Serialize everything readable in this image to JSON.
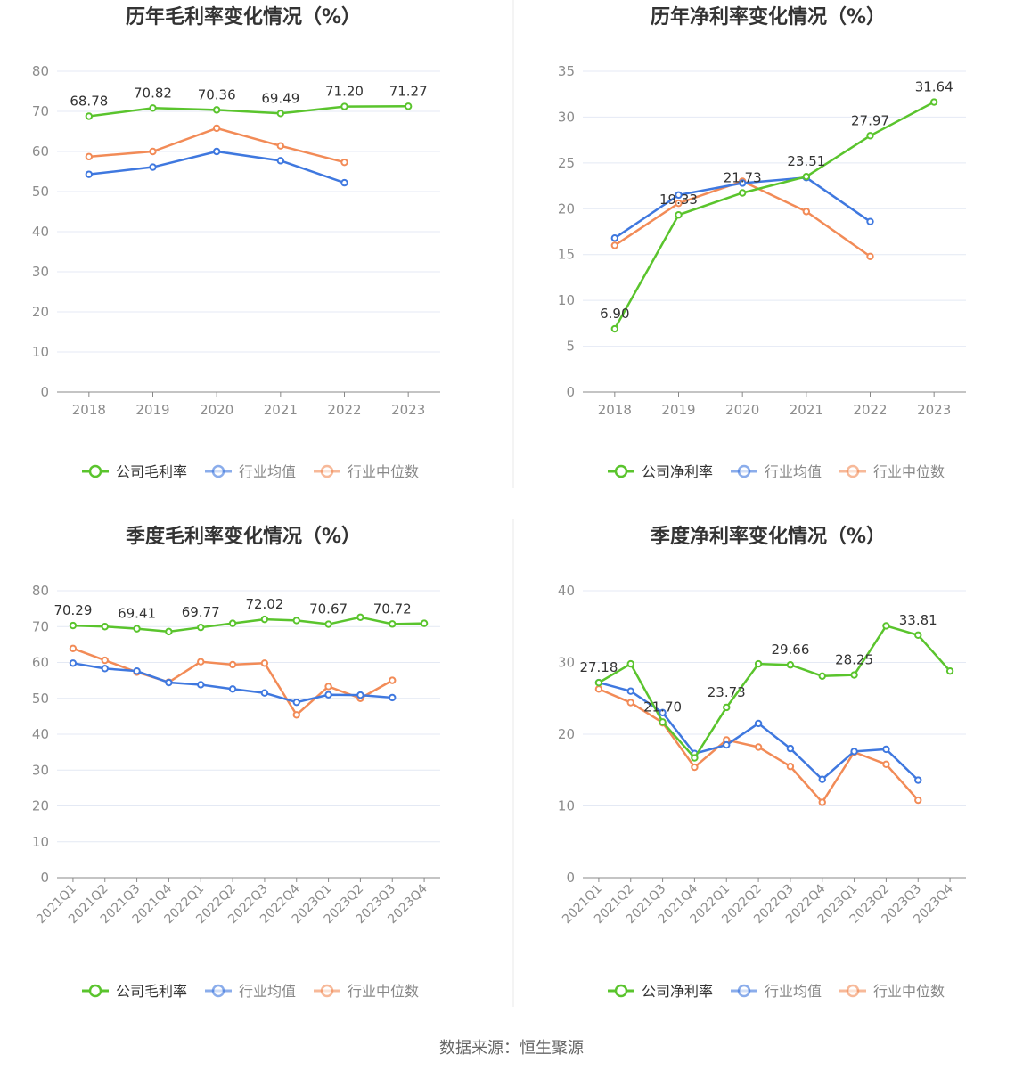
{
  "colors": {
    "company": "#5ac42d",
    "industry_avg": "#3f78df",
    "industry_median": "#f28b57",
    "grid": "#e4e9f4",
    "axis": "#888888",
    "tick_text": "#8c8c8c",
    "title": "#333333",
    "divider": "#e8e8e8"
  },
  "source_text": "数据来源：恒生聚源",
  "chart_data": [
    {
      "type": "line",
      "title": "历年毛利率变化情况（%）",
      "categories": [
        "2018",
        "2019",
        "2020",
        "2021",
        "2022",
        "2023"
      ],
      "ylim": [
        0,
        80
      ],
      "yticks": [
        "0",
        "10",
        "20",
        "30",
        "40",
        "50",
        "60",
        "70",
        "80"
      ],
      "grid": true,
      "legend_position": "bottom",
      "series": [
        {
          "name": "公司毛利率",
          "key": "company",
          "values": [
            68.78,
            70.82,
            70.36,
            69.49,
            71.2,
            71.27
          ],
          "labels": [
            "68.78",
            "70.82",
            "70.36",
            "69.49",
            "71.20",
            "71.27"
          ]
        },
        {
          "name": "行业均值",
          "key": "industry_avg",
          "values": [
            54.3,
            56.1,
            60.0,
            57.7,
            52.2,
            null
          ]
        },
        {
          "name": "行业中位数",
          "key": "industry_median",
          "values": [
            58.7,
            60.0,
            65.8,
            61.4,
            57.3,
            null
          ]
        }
      ]
    },
    {
      "type": "line",
      "title": "历年净利率变化情况（%）",
      "categories": [
        "2018",
        "2019",
        "2020",
        "2021",
        "2022",
        "2023"
      ],
      "ylim": [
        0,
        35
      ],
      "yticks": [
        "0",
        "5",
        "10",
        "15",
        "20",
        "25",
        "30",
        "35"
      ],
      "grid": true,
      "legend_position": "bottom",
      "series": [
        {
          "name": "公司净利率",
          "key": "company",
          "values": [
            6.9,
            19.33,
            21.73,
            23.51,
            27.97,
            31.64
          ],
          "labels": [
            "6.90",
            "19.33",
            "21.73",
            "23.51",
            "27.97",
            "31.64"
          ]
        },
        {
          "name": "行业均值",
          "key": "industry_avg",
          "values": [
            16.8,
            21.5,
            22.8,
            23.4,
            18.6,
            null
          ]
        },
        {
          "name": "行业中位数",
          "key": "industry_median",
          "values": [
            16.0,
            20.6,
            23.0,
            19.7,
            14.8,
            null
          ]
        }
      ]
    },
    {
      "type": "line",
      "title": "季度毛利率变化情况（%）",
      "categories": [
        "2021Q1",
        "2021Q2",
        "2021Q3",
        "2021Q4",
        "2022Q1",
        "2022Q2",
        "2022Q3",
        "2022Q4",
        "2023Q1",
        "2023Q2",
        "2023Q3",
        "2023Q4"
      ],
      "ylim": [
        0,
        80
      ],
      "yticks": [
        "0",
        "10",
        "20",
        "30",
        "40",
        "50",
        "60",
        "70",
        "80"
      ],
      "grid": true,
      "legend_position": "bottom",
      "series": [
        {
          "name": "公司毛利率",
          "key": "company",
          "values": [
            70.29,
            70.0,
            69.41,
            68.6,
            69.77,
            70.9,
            72.02,
            71.7,
            70.67,
            72.6,
            70.72,
            70.9
          ],
          "labels": [
            "70.29",
            "",
            "69.41",
            "",
            "69.77",
            "",
            "72.02",
            "",
            "70.67",
            "",
            "70.72",
            ""
          ]
        },
        {
          "name": "行业均值",
          "key": "industry_avg",
          "values": [
            59.8,
            58.3,
            57.6,
            54.4,
            53.8,
            52.6,
            51.5,
            48.9,
            51.0,
            50.9,
            50.2,
            null
          ]
        },
        {
          "name": "行业中位数",
          "key": "industry_median",
          "values": [
            63.9,
            60.6,
            57.3,
            54.5,
            60.2,
            59.4,
            59.8,
            45.4,
            53.3,
            50.0,
            55.0,
            null
          ]
        }
      ]
    },
    {
      "type": "line",
      "title": "季度净利率变化情况（%）",
      "categories": [
        "2021Q1",
        "2021Q2",
        "2021Q3",
        "2021Q4",
        "2022Q1",
        "2022Q2",
        "2022Q3",
        "2022Q4",
        "2023Q1",
        "2023Q2",
        "2023Q3",
        "2023Q4"
      ],
      "ylim": [
        0,
        40
      ],
      "yticks": [
        "0",
        "10",
        "20",
        "30",
        "40"
      ],
      "grid": true,
      "legend_position": "bottom",
      "series": [
        {
          "name": "公司净利率",
          "key": "company",
          "values": [
            27.18,
            29.8,
            21.7,
            16.7,
            23.73,
            29.8,
            29.66,
            28.1,
            28.25,
            35.1,
            33.81,
            28.8
          ],
          "labels": [
            "27.18",
            "",
            "21.70",
            "",
            "23.73",
            "",
            "29.66",
            "",
            "28.25",
            "",
            "33.81",
            ""
          ]
        },
        {
          "name": "行业均值",
          "key": "industry_avg",
          "values": [
            27.2,
            26.0,
            23.0,
            17.3,
            18.5,
            21.5,
            18.0,
            13.7,
            17.6,
            17.9,
            13.6,
            null
          ]
        },
        {
          "name": "行业中位数",
          "key": "industry_median",
          "values": [
            26.3,
            24.4,
            21.6,
            15.4,
            19.2,
            18.2,
            15.5,
            10.5,
            17.5,
            15.8,
            10.8,
            null
          ]
        }
      ]
    }
  ]
}
